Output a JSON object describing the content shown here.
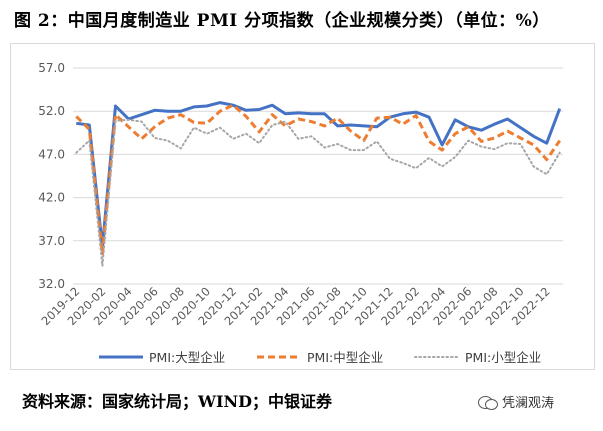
{
  "title": "图 2：中国月度制造业 PMI 分项指数（企业规模分类）（单位：%）",
  "source": "资料来源：国家统计局；WIND；中银证券",
  "watermark": "凭澜观涛",
  "chart_data": {
    "type": "line",
    "title": "",
    "xlabel": "",
    "ylabel": "",
    "ylim": [
      32.0,
      57.0
    ],
    "yticks": [
      "32.0",
      "37.0",
      "42.0",
      "47.0",
      "52.0",
      "57.0"
    ],
    "grid": "horizontal",
    "legend": "bottom",
    "x": [
      "2019-12",
      "2020-01",
      "2020-02",
      "2020-03",
      "2020-04",
      "2020-05",
      "2020-06",
      "2020-07",
      "2020-08",
      "2020-09",
      "2020-10",
      "2020-11",
      "2020-12",
      "2021-01",
      "2021-02",
      "2021-03",
      "2021-04",
      "2021-05",
      "2021-06",
      "2021-07",
      "2021-08",
      "2021-09",
      "2021-10",
      "2021-11",
      "2021-12",
      "2022-01",
      "2022-02",
      "2022-03",
      "2022-04",
      "2022-05",
      "2022-06",
      "2022-07",
      "2022-08",
      "2022-09",
      "2022-10",
      "2022-11",
      "2022-12",
      "2023-01"
    ],
    "xtick_labels": [
      "2019-12",
      "2020-02",
      "2020-04",
      "2020-06",
      "2020-08",
      "2020-10",
      "2020-12",
      "2021-02",
      "2021-04",
      "2021-06",
      "2021-08",
      "2021-10",
      "2021-12",
      "2022-02",
      "2022-04",
      "2022-06",
      "2022-08",
      "2022-10",
      "2022-12"
    ],
    "series": [
      {
        "name": "PMI:大型企业",
        "color": "#4472c4",
        "style": "solid",
        "values": [
          50.6,
          50.4,
          36.3,
          52.6,
          51.1,
          51.6,
          52.1,
          52.0,
          52.0,
          52.5,
          52.6,
          53.0,
          52.7,
          52.1,
          52.2,
          52.7,
          51.7,
          51.8,
          51.7,
          51.7,
          50.3,
          50.4,
          50.3,
          50.2,
          51.3,
          51.7,
          51.9,
          51.3,
          48.1,
          51.0,
          50.2,
          49.8,
          50.5,
          51.1,
          50.1,
          49.1,
          48.3,
          52.3
        ]
      },
      {
        "name": "PMI:中型企业",
        "color": "#ed7d31",
        "style": "dashed",
        "values": [
          51.4,
          49.9,
          35.5,
          51.6,
          50.2,
          48.8,
          50.2,
          51.2,
          51.6,
          50.7,
          50.6,
          52.0,
          52.7,
          51.4,
          49.6,
          51.6,
          50.3,
          51.1,
          50.8,
          50.3,
          51.2,
          49.7,
          48.6,
          51.2,
          51.3,
          50.5,
          51.5,
          48.5,
          47.5,
          49.4,
          50.2,
          48.5,
          48.9,
          49.7,
          48.9,
          48.1,
          46.4,
          48.6
        ]
      },
      {
        "name": "PMI:小型企业",
        "color": "#a6a6a6",
        "style": "dotted",
        "values": [
          47.2,
          48.6,
          34.1,
          50.9,
          51.0,
          50.8,
          48.9,
          48.6,
          47.7,
          50.1,
          49.4,
          50.1,
          48.8,
          49.4,
          48.3,
          50.4,
          50.8,
          48.8,
          49.1,
          47.8,
          48.2,
          47.5,
          47.5,
          48.5,
          46.5,
          46.0,
          45.4,
          46.6,
          45.6,
          46.7,
          48.6,
          47.9,
          47.6,
          48.3,
          48.2,
          45.6,
          44.7,
          47.2
        ]
      }
    ]
  }
}
